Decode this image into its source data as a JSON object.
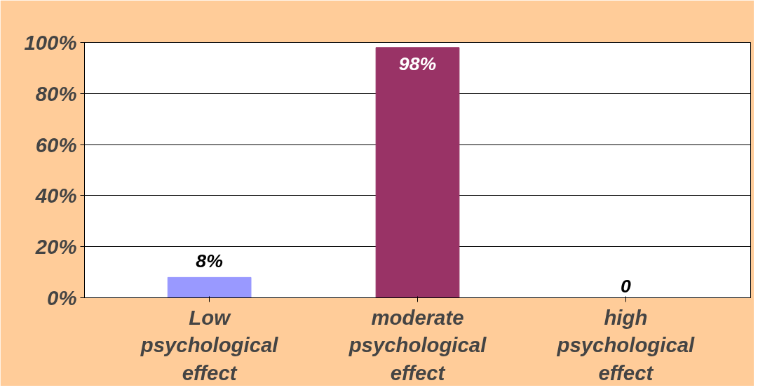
{
  "chart_data": {
    "type": "bar",
    "categories": [
      "Low psychological effect",
      "moderate psychological effect",
      "high psychological effect"
    ],
    "values": [
      8,
      98,
      0
    ],
    "colors": [
      "#9999ff",
      "#993366",
      "#c0c0a0"
    ],
    "value_labels": [
      "8%",
      "98%",
      "0"
    ],
    "ylim": [
      0,
      100
    ],
    "yticks": [
      {
        "value": 0,
        "label": "0%"
      },
      {
        "value": 20,
        "label": "20%"
      },
      {
        "value": 40,
        "label": "40%"
      },
      {
        "value": 60,
        "label": "60%"
      },
      {
        "value": 80,
        "label": "80%"
      },
      {
        "value": 100,
        "label": "100%"
      }
    ],
    "grid": "y",
    "legend": false
  }
}
